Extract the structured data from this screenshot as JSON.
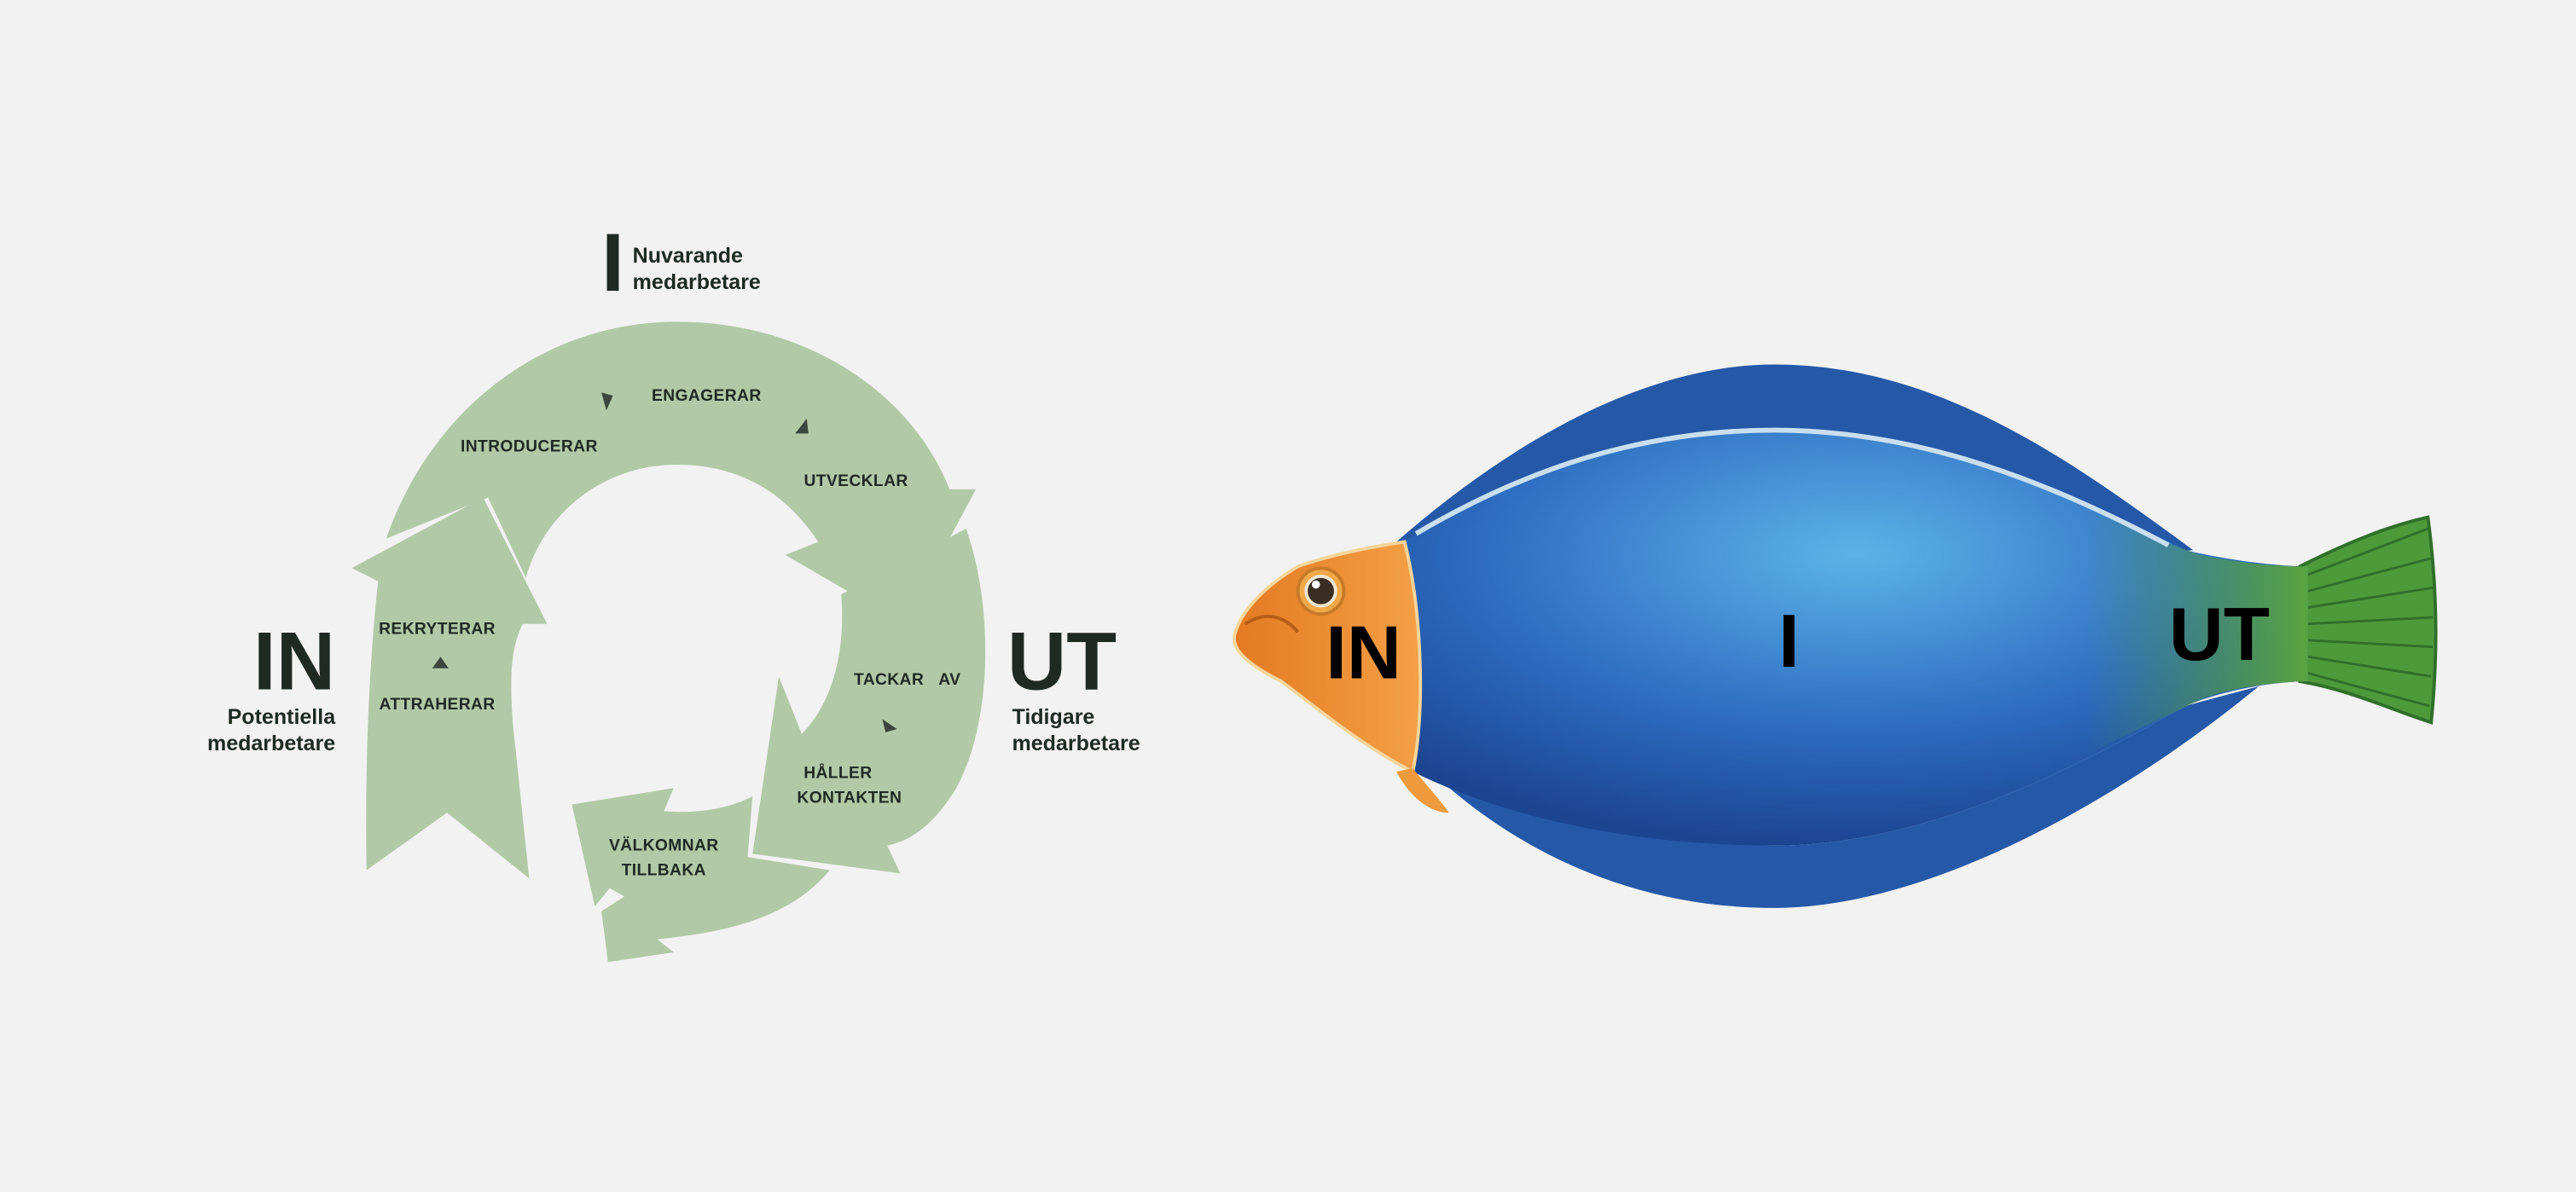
{
  "colors": {
    "background": "#f2f2f2",
    "cycle_green": "#b2c9a7",
    "text_dark": "#1e2a22",
    "fish_blue": "#2f6fc0",
    "fish_head": "#ee8f33",
    "fish_tail": "#4f9a3c"
  },
  "cycle": {
    "top_marker": "I",
    "top_label_line1": "Nuvarande",
    "top_label_line2": "medarbetare",
    "left_marker": "IN",
    "left_label_line1": "Potentiella",
    "left_label_line2": "medarbetare",
    "right_marker": "UT",
    "right_label_line1": "Tidigare",
    "right_label_line2": "medarbetare",
    "steps": {
      "introducerar": "INTRODUCERAR",
      "engagerar": "ENGAGERAR",
      "utvecklar": "UTVECKLAR",
      "rekryterar": "REKRYTERAR",
      "attraherar": "ATTRAHERAR",
      "tackar": "TACKAR",
      "av": "AV",
      "haller": "HÅLLER",
      "kontakten": "KONTAKTEN",
      "valkomnar": "VÄLKOMNAR",
      "tillbaka": "TILLBAKA"
    }
  },
  "fish": {
    "head_label": "IN",
    "body_label": "I",
    "tail_label": "UT"
  }
}
